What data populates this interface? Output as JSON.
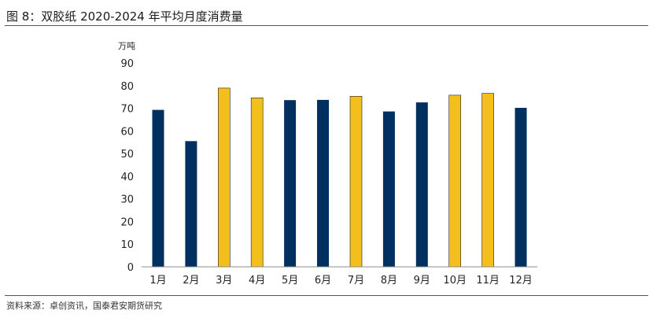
{
  "figure": {
    "title": "图 8：双胶纸 2020-2024 年平均月度消费量",
    "source": "资料来源：卓创资讯，国泰君安期货研究"
  },
  "chart_data": {
    "type": "bar",
    "unit": "万吨",
    "categories": [
      "1月",
      "2月",
      "3月",
      "4月",
      "5月",
      "6月",
      "7月",
      "8月",
      "9月",
      "10月",
      "11月",
      "12月"
    ],
    "values": [
      69.3,
      55.5,
      78.9,
      74.6,
      73.6,
      73.7,
      75.3,
      68.6,
      72.6,
      75.8,
      76.6,
      70.2
    ],
    "highlighted": [
      false,
      false,
      true,
      true,
      false,
      false,
      true,
      false,
      false,
      true,
      true,
      false
    ],
    "ylim": [
      0,
      90
    ],
    "yticks": [
      0,
      10,
      20,
      30,
      40,
      50,
      60,
      70,
      80,
      90
    ],
    "xlabel": "",
    "ylabel": "",
    "grid": false,
    "colors": {
      "primary": "#00305f",
      "highlight": "#f2bf1c",
      "axis": "#8c8c8c"
    }
  }
}
